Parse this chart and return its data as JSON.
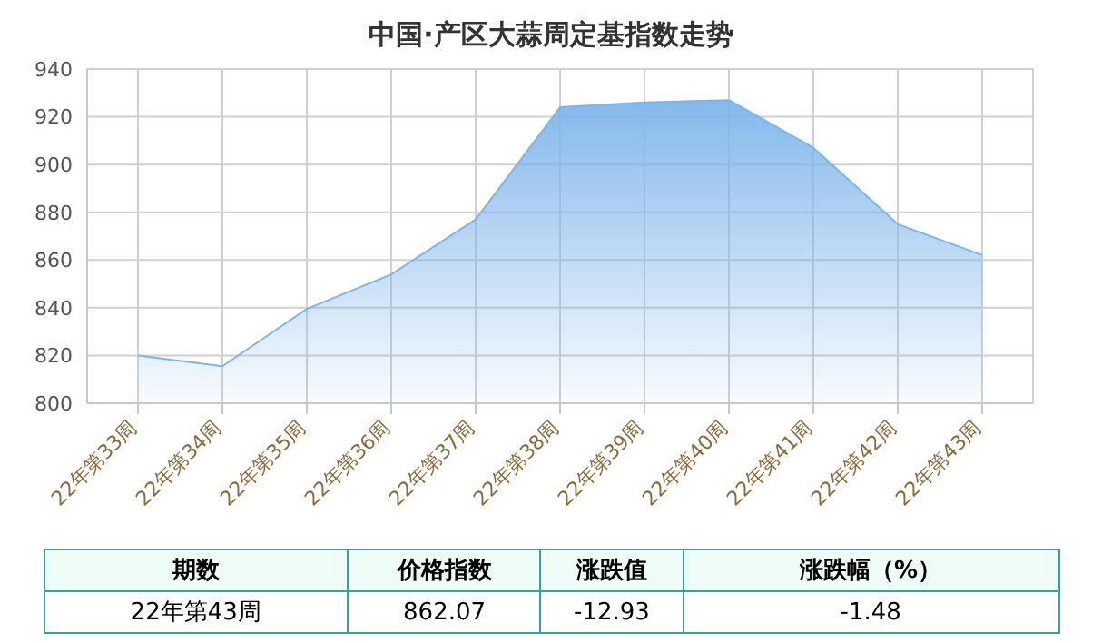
{
  "chart_data": {
    "type": "area",
    "title": "中国·产区大蒜周定基指数走势",
    "categories": [
      "22年第33周",
      "22年第34周",
      "22年第35周",
      "22年第36周",
      "22年第37周",
      "22年第38周",
      "22年第39周",
      "22年第40周",
      "22年第41周",
      "22年第42周",
      "22年第43周"
    ],
    "series": [
      {
        "color": "#7eb4ea",
        "values": [
          820,
          815.5,
          839.5,
          854,
          877,
          924,
          926,
          927,
          907,
          875,
          862.07
        ]
      }
    ],
    "ylim": [
      800,
      940
    ],
    "yticks": [
      800,
      820,
      840,
      860,
      880,
      900,
      920,
      940
    ],
    "grid": true,
    "marker": "none",
    "line_style": "solid",
    "annotations": [
      "期数",
      "价格指数",
      "涨跌值",
      "涨跌幅（%）",
      "22年第43周",
      "862.07",
      "-12.93",
      "-1.48"
    ]
  }
}
